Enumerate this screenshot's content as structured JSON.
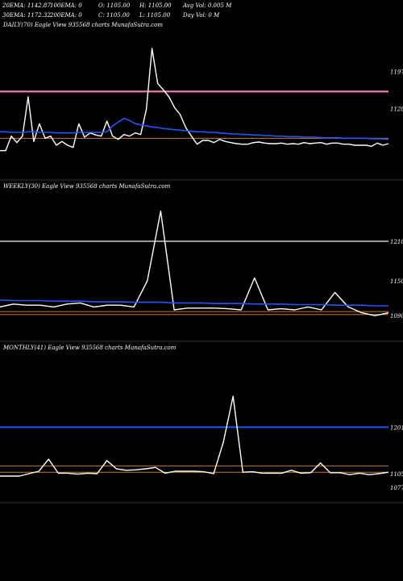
{
  "header": {
    "col1_line1": "20EMA: 1142.87",
    "col2_line1": "100EMA: 0",
    "col3_line1": "O: 1105.00",
    "col4_line1": "H: 1105.00",
    "col5_line1": "Avg Vol: 0.005 M",
    "col1_line2": "30EMA: 1172.32",
    "col2_line2": "200EMA: 0",
    "col3_line2": "C: 1105.00",
    "col4_line2": "L: 1105.00",
    "col5_line2": "Day Vol: 0  M"
  },
  "colors": {
    "background": "#000000",
    "price": "#ffffff",
    "ema_blue": "#2255ff",
    "ma_pink": "#ff88bb",
    "ma_grey": "#999999",
    "level_orange": "#cc7722"
  },
  "chart_data": [
    {
      "type": "line",
      "panel_label": "DAILY(70) Eagle   View  935568  charts MunafaSutra.com",
      "ylim": [
        1000,
        1270
      ],
      "right_ticks": [
        "1197",
        "1128"
      ],
      "x": [
        0,
        1,
        2,
        3,
        4,
        5,
        6,
        7,
        8,
        9,
        10,
        11,
        12,
        13,
        14,
        15,
        16,
        17,
        18,
        19,
        20,
        21,
        22,
        23,
        24,
        25,
        26,
        27,
        28,
        29,
        30,
        31,
        32,
        33,
        34,
        35,
        36,
        37,
        38,
        39,
        40,
        41,
        42,
        43,
        44,
        45,
        46,
        47,
        48,
        49,
        50,
        51,
        52,
        53,
        54,
        55,
        56,
        57,
        58,
        59,
        60,
        61,
        62,
        63,
        64,
        65,
        66,
        67,
        68,
        69
      ],
      "series": [
        {
          "name": "",
          "role": "price",
          "values": [
            1050,
            1050,
            1077,
            1065,
            1077,
            1150,
            1067,
            1100,
            1073,
            1077,
            1060,
            1067,
            1060,
            1056,
            1100,
            1075,
            1083,
            1079,
            1077,
            1105,
            1077,
            1071,
            1080,
            1077,
            1083,
            1080,
            1127,
            1240,
            1175,
            1163,
            1150,
            1130,
            1117,
            1093,
            1077,
            1062,
            1069,
            1069,
            1065,
            1071,
            1067,
            1065,
            1063,
            1062,
            1062,
            1065,
            1066,
            1064,
            1063,
            1063,
            1064,
            1062,
            1063,
            1062,
            1065,
            1063,
            1064,
            1065,
            1062,
            1064,
            1064,
            1062,
            1062,
            1060,
            1060,
            1060,
            1058,
            1064,
            1060,
            1063
          ]
        },
        {
          "name": "",
          "role": "ema",
          "values": [
            1085,
            1085,
            1084,
            1084,
            1084,
            1085,
            1085,
            1084,
            1084,
            1084,
            1083,
            1083,
            1083,
            1083,
            1084,
            1084,
            1084,
            1084,
            1084,
            1085,
            1096,
            1103,
            1110,
            1106,
            1100,
            1098,
            1096,
            1094,
            1093,
            1091,
            1090,
            1089,
            1088,
            1087,
            1086,
            1085,
            1085,
            1084,
            1084,
            1083,
            1082,
            1081,
            1081,
            1080,
            1080,
            1079,
            1079,
            1078,
            1078,
            1077,
            1077,
            1076,
            1076,
            1076,
            1075,
            1075,
            1075,
            1074,
            1074,
            1074,
            1074,
            1073,
            1073,
            1073,
            1073,
            1073,
            1072,
            1072,
            1072,
            1071
          ]
        }
      ],
      "levels": [
        {
          "name": "",
          "value": 1160,
          "color": "#ff88bb"
        },
        {
          "name": "",
          "value": 1073,
          "color": "#cc7722"
        }
      ]
    },
    {
      "type": "line",
      "panel_label": "WEEKLY(30) Eagle   View  935568  charts MunafaSutra.com",
      "ylim": [
        1050,
        1300
      ],
      "right_ticks": [
        "1218",
        "1150",
        "1090"
      ],
      "x": [
        0,
        1,
        2,
        3,
        4,
        5,
        6,
        7,
        8,
        9,
        10,
        11,
        12,
        13,
        14,
        15,
        16,
        17,
        18,
        19,
        20,
        21,
        22,
        23,
        24,
        25,
        26,
        27,
        28,
        29
      ],
      "series": [
        {
          "name": "",
          "role": "price",
          "values": [
            1105,
            1110,
            1108,
            1108,
            1105,
            1110,
            1112,
            1105,
            1108,
            1108,
            1105,
            1150,
            1270,
            1100,
            1103,
            1103,
            1103,
            1102,
            1100,
            1155,
            1100,
            1102,
            1100,
            1105,
            1100,
            1130,
            1105,
            1095,
            1090,
            1095
          ]
        },
        {
          "name": "",
          "role": "ema",
          "values": [
            1117,
            1116,
            1116,
            1116,
            1115,
            1115,
            1115,
            1114,
            1114,
            1114,
            1113,
            1113,
            1113,
            1112,
            1112,
            1112,
            1111,
            1111,
            1111,
            1110,
            1110,
            1110,
            1109,
            1109,
            1109,
            1108,
            1108,
            1108,
            1107,
            1107
          ]
        }
      ],
      "levels": [
        {
          "name": "",
          "value": 1218,
          "color": "#999999"
        },
        {
          "name": "",
          "value": 1097,
          "color": "#cc7722"
        },
        {
          "name": "",
          "value": 1092,
          "color": "#cc7722"
        }
      ]
    },
    {
      "type": "line",
      "panel_label": "MONTHLY(41) Eagle   View  935568  charts MunafaSutra.com",
      "ylim": [
        1050,
        1350
      ],
      "right_ticks": [
        "1201",
        "1105",
        "1077"
      ],
      "x": [
        0,
        1,
        2,
        3,
        4,
        5,
        6,
        7,
        8,
        9,
        10,
        11,
        12,
        13,
        14,
        15,
        16,
        17,
        18,
        19,
        20,
        21,
        22,
        23,
        24,
        25,
        26,
        27,
        28,
        29,
        30,
        31,
        32,
        33,
        34,
        35,
        36,
        37,
        38,
        39,
        40
      ],
      "series": [
        {
          "name": "",
          "role": "price",
          "values": [
            1100,
            1100,
            1100,
            1105,
            1110,
            1135,
            1106,
            1106,
            1104,
            1106,
            1105,
            1132,
            1115,
            1112,
            1113,
            1115,
            1118,
            1106,
            1110,
            1110,
            1110,
            1109,
            1105,
            1170,
            1265,
            1108,
            1109,
            1106,
            1106,
            1106,
            1112,
            1106,
            1107,
            1127,
            1107,
            1107,
            1103,
            1106,
            1103,
            1105,
            1108
          ]
        }
      ],
      "levels": [
        {
          "name": "",
          "value": 1201,
          "color": "#2255ff"
        },
        {
          "name": "",
          "value": 1121,
          "color": "#cc7722"
        },
        {
          "name": "",
          "value": 1108,
          "color": "#cc7722"
        }
      ]
    }
  ]
}
